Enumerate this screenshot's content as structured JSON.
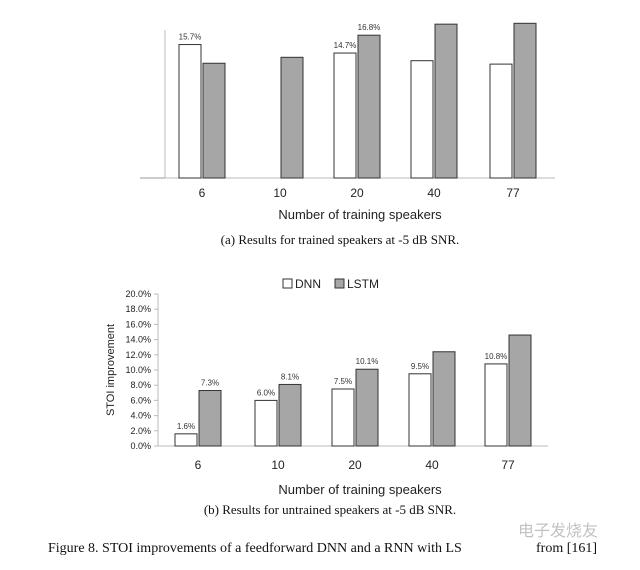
{
  "colors": {
    "dnn": "#ffffff",
    "lstm": "#a6a6a6",
    "edge": "#333333"
  },
  "chart_data": [
    {
      "type": "bar",
      "categories": [
        "6",
        "10",
        "20",
        "40",
        "77"
      ],
      "series": [
        {
          "name": "DNN",
          "values": [
            15.7,
            null,
            14.7,
            13.8,
            13.4
          ]
        },
        {
          "name": "LSTM",
          "values": [
            13.5,
            14.2,
            16.8,
            18.1,
            18.2
          ]
        }
      ],
      "data_labels": {
        "DNN": [
          "15.7%",
          "",
          "14.7%",
          "",
          ""
        ],
        "LSTM": [
          "",
          "",
          "16.8%",
          "",
          ""
        ]
      },
      "xlabel": "Number of training speakers",
      "caption": "(a) Results for trained speakers at -5 dB SNR.",
      "ylim": [
        0,
        20
      ]
    },
    {
      "type": "bar",
      "categories": [
        "6",
        "10",
        "20",
        "40",
        "77"
      ],
      "series": [
        {
          "name": "DNN",
          "values": [
            1.6,
            6.0,
            7.5,
            9.5,
            10.8
          ]
        },
        {
          "name": "LSTM",
          "values": [
            7.3,
            8.1,
            10.1,
            12.4,
            14.6
          ]
        }
      ],
      "data_labels": {
        "DNN": [
          "1.6%",
          "6.0%",
          "7.5%",
          "9.5%",
          "10.8%"
        ],
        "LSTM": [
          "7.3%",
          "8.1%",
          "10.1%",
          "",
          ""
        ]
      },
      "ylabel": "STOI improvement",
      "yticks": [
        "0.0%",
        "2.0%",
        "4.0%",
        "6.0%",
        "8.0%",
        "10.0%",
        "12.0%",
        "14.0%",
        "16.0%",
        "18.0%",
        "20.0%"
      ],
      "ylim": [
        0,
        20
      ],
      "xlabel": "Number of training speakers",
      "caption": "(b) Results for untrained speakers at -5 dB SNR.",
      "legend": [
        "DNN",
        "LSTM"
      ],
      "legend_position": "top-center"
    }
  ],
  "figure_caption": "Figure 8.  STOI improvements of a feedforward DNN and a RNN with LS",
  "figure_caption_tail": "from [161]",
  "watermark": "电子发烧友"
}
